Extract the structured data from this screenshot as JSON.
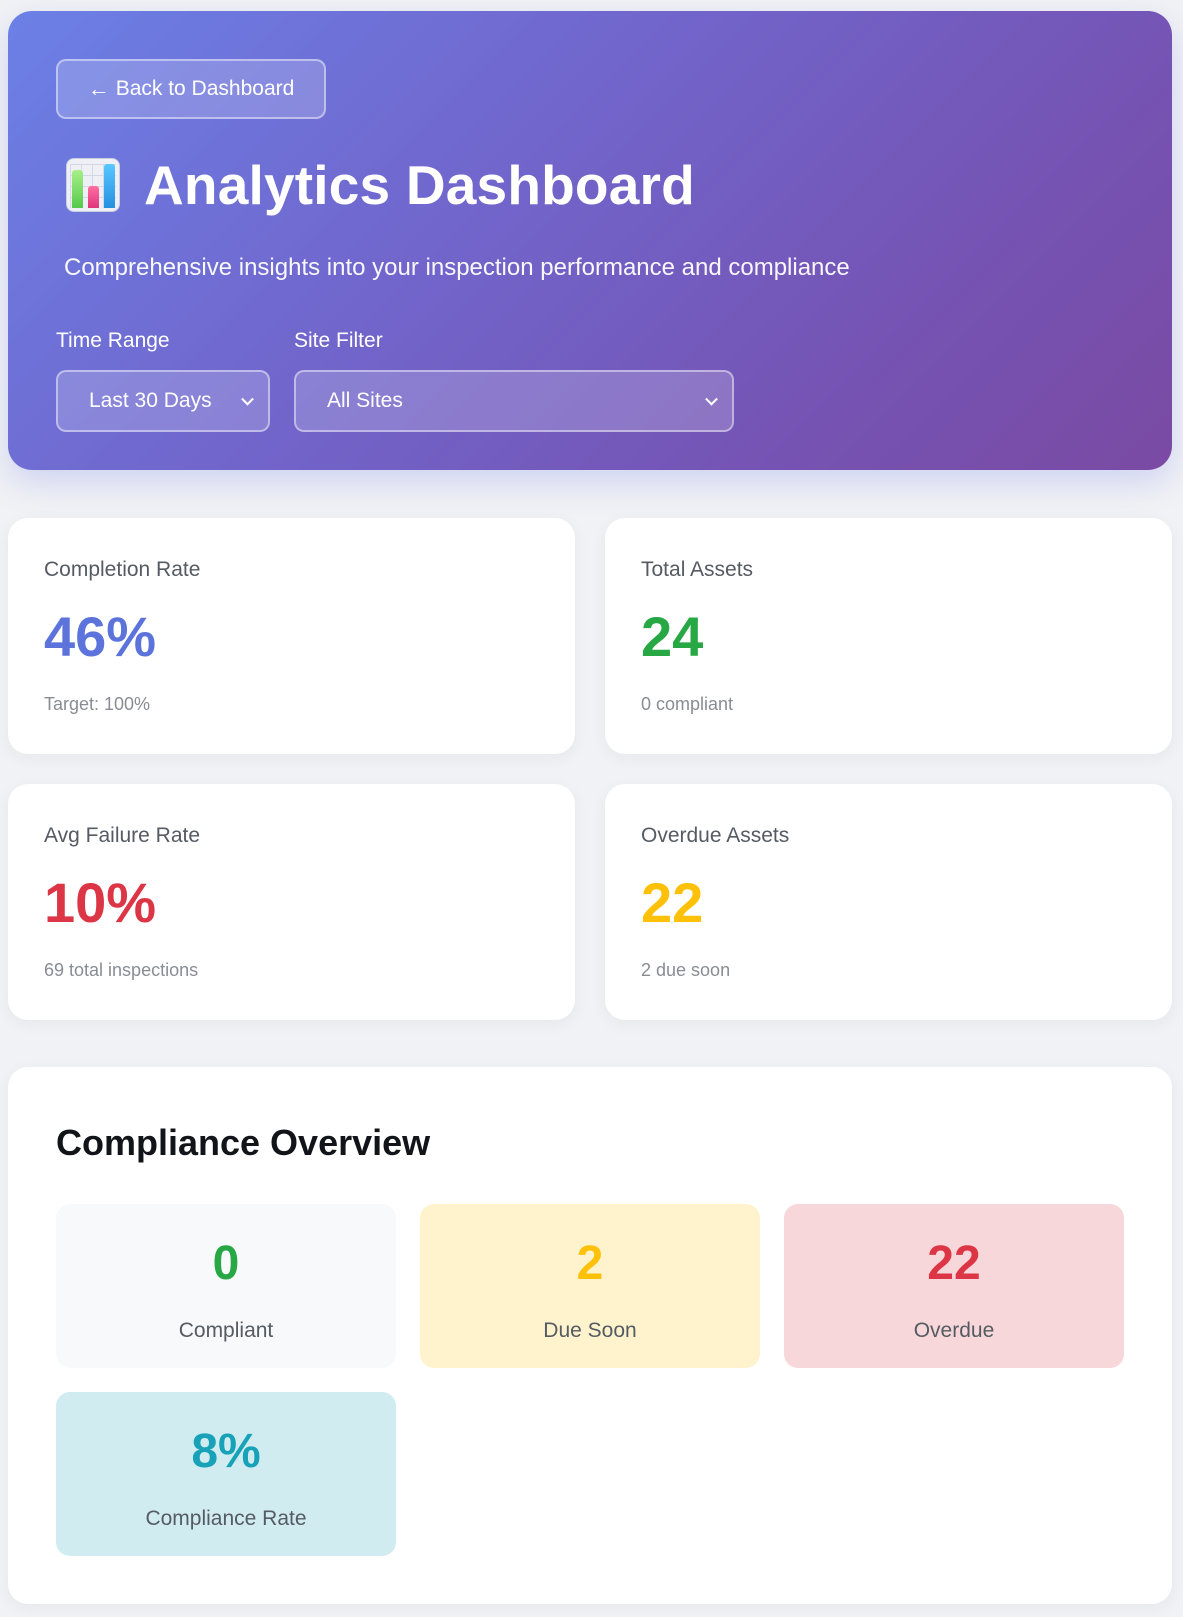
{
  "header": {
    "back_label": "Back to Dashboard",
    "back_icon": "arrow-left-icon",
    "title": "Analytics Dashboard",
    "title_icon": "bar-chart-icon",
    "subtitle": "Comprehensive insights into your inspection performance and compliance",
    "filters": {
      "time_range": {
        "label": "Time Range",
        "value": "Last 30 Days"
      },
      "site_filter": {
        "label": "Site Filter",
        "value": "All Sites"
      }
    }
  },
  "stats": {
    "completion_rate": {
      "label": "Completion Rate",
      "value": "46%",
      "sub": "Target: 100%",
      "color": "#5b73db"
    },
    "total_assets": {
      "label": "Total Assets",
      "value": "24",
      "sub": "0 compliant",
      "color": "#28a745"
    },
    "avg_failure_rate": {
      "label": "Avg Failure Rate",
      "value": "10%",
      "sub": "69 total inspections",
      "color": "#dc3545"
    },
    "overdue_assets": {
      "label": "Overdue Assets",
      "value": "22",
      "sub": "2 due soon",
      "color": "#ffc107"
    }
  },
  "compliance": {
    "title": "Compliance Overview",
    "compliant": {
      "value": "0",
      "label": "Compliant",
      "color": "#28a745",
      "bg": "#f8f9fa"
    },
    "due_soon": {
      "value": "2",
      "label": "Due Soon",
      "color": "#ffc107",
      "bg": "#fff3cd"
    },
    "overdue": {
      "value": "22",
      "label": "Overdue",
      "color": "#dc3545",
      "bg": "#f8d7da"
    },
    "compliance_rate": {
      "value": "8%",
      "label": "Compliance Rate",
      "color": "#17a2b8",
      "bg": "#d1ecf1"
    }
  }
}
